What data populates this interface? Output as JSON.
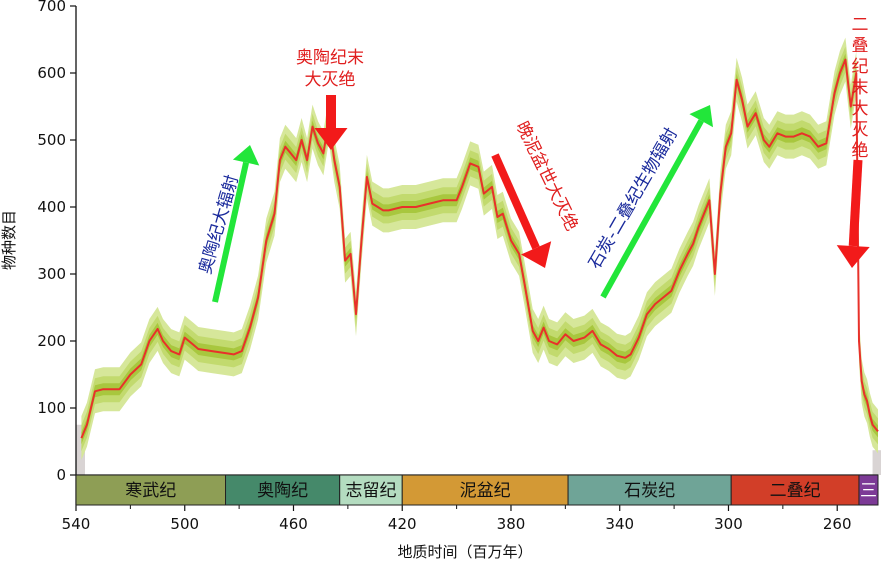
{
  "chart_data": {
    "type": "line",
    "xlabel": "地质时间（百万年）",
    "ylabel": "物种数目",
    "xlim": [
      540,
      245
    ],
    "ylim": [
      0,
      700
    ],
    "x_ticks": [
      540,
      500,
      460,
      420,
      380,
      340,
      300,
      260
    ],
    "y_ticks": [
      0,
      100,
      200,
      300,
      400,
      500,
      600,
      700
    ],
    "series": [
      {
        "type": "line",
        "color": "#e8312a",
        "x": [
          538,
          536,
          533,
          530,
          524,
          520,
          516,
          513,
          510,
          508,
          505,
          502,
          500,
          497,
          495,
          490,
          485,
          482,
          479,
          476,
          473,
          470,
          467,
          465,
          463,
          461,
          459,
          457,
          455,
          453,
          451,
          449,
          447,
          445,
          443,
          441,
          439,
          437,
          435,
          433,
          431,
          429,
          427,
          425,
          420,
          415,
          410,
          405,
          400,
          398,
          395,
          392,
          390,
          387,
          385,
          383,
          380,
          377,
          375,
          372,
          370,
          368,
          366,
          363,
          360,
          357,
          353,
          350,
          347,
          344,
          341,
          338,
          336,
          333,
          330,
          327,
          324,
          321,
          318,
          315,
          313,
          311,
          309,
          307,
          305,
          303,
          301,
          299,
          297,
          295,
          293,
          290,
          287,
          285,
          282,
          279,
          276,
          273,
          270,
          267,
          264,
          261,
          259,
          257,
          255,
          253,
          252,
          251,
          250,
          249,
          248,
          247,
          245
        ],
        "y": [
          55,
          75,
          125,
          128,
          128,
          150,
          165,
          200,
          218,
          200,
          185,
          180,
          205,
          195,
          188,
          185,
          182,
          180,
          185,
          220,
          265,
          350,
          390,
          470,
          490,
          480,
          470,
          500,
          470,
          520,
          495,
          480,
          530,
          470,
          430,
          320,
          330,
          240,
          350,
          445,
          405,
          400,
          395,
          395,
          400,
          400,
          405,
          410,
          410,
          430,
          465,
          460,
          420,
          430,
          385,
          390,
          350,
          330,
          285,
          215,
          200,
          220,
          200,
          195,
          210,
          200,
          205,
          215,
          195,
          188,
          178,
          175,
          180,
          205,
          240,
          255,
          265,
          275,
          305,
          330,
          345,
          370,
          390,
          410,
          300,
          420,
          490,
          510,
          590,
          560,
          520,
          540,
          500,
          490,
          510,
          505,
          505,
          510,
          505,
          490,
          495,
          570,
          600,
          620,
          550,
          600,
          200,
          140,
          120,
          110,
          90,
          75,
          65
        ]
      }
    ],
    "periods": [
      {
        "name": "寒武纪",
        "start": 540,
        "end": 485,
        "color": "#8e9e55"
      },
      {
        "name": "奥陶纪",
        "start": 485,
        "end": 443,
        "color": "#45896a"
      },
      {
        "name": "志留纪",
        "start": 443,
        "end": 420,
        "color": "#b4dcc0"
      },
      {
        "name": "泥盆纪",
        "start": 420,
        "end": 359,
        "color": "#d39935"
      },
      {
        "name": "石炭纪",
        "start": 359,
        "end": 299,
        "color": "#6fa497"
      },
      {
        "name": "二叠纪",
        "start": 299,
        "end": 252,
        "color": "#d23e28"
      },
      {
        "name": "三",
        "start": 252,
        "end": 245,
        "color": "#7c3a96"
      }
    ],
    "annotations": [
      {
        "text": "奥陶纪大辐射",
        "color": "#1a2a9c",
        "arrow": "#22e63a"
      },
      {
        "text": "奥陶纪末",
        "color": "#e01e1e"
      },
      {
        "text": "大灭绝",
        "color": "#e01e1e"
      },
      {
        "text": "晚泥盆世大灭绝",
        "color": "#e01e1e"
      },
      {
        "text": "石炭-二叠纪生物辐射",
        "color": "#1a2a9c",
        "arrow": "#22e63a"
      },
      {
        "text": "二叠纪末大灭绝",
        "color": "#e01e1e"
      }
    ]
  }
}
